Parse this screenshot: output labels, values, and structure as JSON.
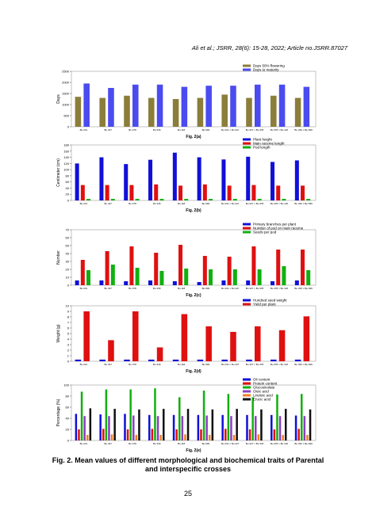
{
  "header": "Ali et al.; JSRR, 28(6): 15-28, 2022; Article no.JSRR.87027",
  "chart_data": [
    {
      "type": "bar",
      "title": "Fig. 2(a)",
      "y_label": "Days",
      "legend": "upper right",
      "categories": [
        "Bu 231",
        "Bu 327",
        "Bu 378",
        "Bu 336",
        "Bu 118",
        "Bp 699",
        "Bu 231 × Bu 327",
        "Bu 327 × Bu 378",
        "Bu 378 × Bu 118",
        "Bu 336 × Bp 699"
      ],
      "series": [
        {
          "name": "Days 50% flowering",
          "color": "#8b7d3a",
          "values": [
            1350,
            1300,
            1400,
            1300,
            1250,
            1300,
            1450,
            1300,
            1400,
            1300
          ]
        },
        {
          "name": "Days to maturity",
          "color": "#4b4bf0",
          "values": [
            1950,
            1750,
            1900,
            1900,
            1800,
            1850,
            1850,
            1900,
            1900,
            1800
          ]
        }
      ],
      "ylim": [
        0,
        2500
      ],
      "yticks": [
        0,
        500,
        1000,
        1500,
        2000,
        2500
      ]
    },
    {
      "type": "bar",
      "title": "Fig. 2(b)",
      "y_label": "Centimeter (cm)",
      "legend": "upper right",
      "categories": [
        "Bu 231",
        "Bu 327",
        "Bu 378",
        "Bu 336",
        "Bu 118",
        "Bp 699",
        "Bu 231 × Bu 327",
        "Bu 327 × Bu 378",
        "Bu 378 × Bu 118",
        "Bu 336 × Bp 699"
      ],
      "series": [
        {
          "name": "Plant height",
          "color": "#1010d8",
          "values": [
            120,
            140,
            118,
            132,
            155,
            140,
            133,
            142,
            125,
            130
          ]
        },
        {
          "name": "Main raceme length",
          "color": "#e01010",
          "values": [
            50,
            50,
            50,
            52,
            48,
            52,
            48,
            50,
            48,
            48
          ]
        },
        {
          "name": "Pod length",
          "color": "#10b010",
          "values": [
            5,
            5,
            5,
            5,
            5,
            5,
            5,
            5,
            5,
            5
          ]
        }
      ],
      "ylim": [
        0,
        180
      ],
      "yticks": [
        0,
        20,
        40,
        60,
        80,
        100,
        120,
        140,
        160,
        180
      ]
    },
    {
      "type": "bar",
      "title": "Fig. 2(c)",
      "y_label": "Number",
      "legend": "upper right",
      "categories": [
        "Bu 231",
        "Bu 327",
        "Bu 378",
        "Bu 336",
        "Bu 118",
        "Bp 699",
        "Bu 231 × Bu 327",
        "Bu 327 × Bu 378",
        "Bu 378 × Bu 118",
        "Bu 336 × Bp 699"
      ],
      "series": [
        {
          "name": "Primary branches per plant",
          "color": "#1010d8",
          "values": [
            6,
            6,
            5,
            6,
            5,
            4,
            6,
            6,
            5,
            6
          ]
        },
        {
          "name": "Number of pod on main raceme",
          "color": "#e01010",
          "values": [
            32,
            43,
            49,
            41,
            51,
            37,
            36,
            49,
            45,
            45
          ]
        },
        {
          "name": "Seeds per pod",
          "color": "#10b010",
          "values": [
            19,
            26,
            22,
            18,
            21,
            20,
            20,
            20,
            24,
            19
          ]
        }
      ],
      "ylim": [
        0,
        70
      ],
      "yticks": [
        0,
        10,
        20,
        30,
        40,
        50,
        60,
        70
      ]
    },
    {
      "type": "bar",
      "title": "Fig. 2(d)",
      "y_label": "Weight (g)",
      "legend": "upper right",
      "categories": [
        "Bu 231",
        "Bu 327",
        "Bu 378",
        "Bu 336",
        "Bu 118",
        "Bp 699",
        "Bu 231 × Bu 327",
        "Bu 327 × Bu 378",
        "Bu 378 × Bu 118",
        "Bu 336 × Bp 699"
      ],
      "series": [
        {
          "name": "Hundred seed weight",
          "color": "#1010d8",
          "values": [
            0.3,
            0.3,
            0.3,
            0.3,
            0.3,
            0.3,
            0.3,
            0.3,
            0.3,
            0.3
          ]
        },
        {
          "name": "Yield per plant",
          "color": "#e01010",
          "values": [
            9,
            3.8,
            9,
            2.5,
            8.5,
            6.3,
            5.3,
            6.3,
            5.6,
            8.1
          ]
        }
      ],
      "ylim": [
        0,
        10
      ],
      "yticks": [
        0,
        1,
        2,
        3,
        4,
        5,
        6,
        7,
        8,
        9,
        10
      ]
    },
    {
      "type": "bar",
      "title": "Fig. 2(e)",
      "y_label": "Percentage (%)",
      "legend": "upper right",
      "categories": [
        "Bu 231",
        "Bu 327",
        "Bu 378",
        "Bu 336",
        "Bu 118",
        "Bp 699",
        "Bu 231 × Bu 327",
        "Bu 327 × Bu 378",
        "Bu 378 × Bu 118",
        "Bu 336 × Bp 699"
      ],
      "series": [
        {
          "name": "Oil content",
          "color": "#1010d8",
          "values": [
            48,
            47,
            48,
            46,
            46,
            46,
            46,
            46,
            46,
            45
          ]
        },
        {
          "name": "Protein content",
          "color": "#e01010",
          "values": [
            20,
            21,
            20,
            21,
            20,
            20,
            21,
            20,
            20,
            21
          ]
        },
        {
          "name": "Glucosinolate",
          "color": "#10b010",
          "values": [
            88,
            92,
            92,
            94,
            78,
            90,
            84,
            78,
            83,
            84
          ]
        },
        {
          "name": "Oleic acid",
          "color": "#8a40c0",
          "values": [
            44,
            44,
            45,
            44,
            44,
            45,
            44,
            44,
            44,
            44
          ]
        },
        {
          "name": "Linoleic acid",
          "color": "#f08020",
          "values": [
            10,
            11,
            10,
            10,
            11,
            10,
            10,
            11,
            10,
            10
          ]
        },
        {
          "name": "Erucic acid",
          "color": "#101010",
          "values": [
            58,
            57,
            56,
            57,
            57,
            56,
            57,
            56,
            57,
            56
          ]
        }
      ],
      "ylim": [
        0,
        100
      ],
      "yticks": [
        0,
        20,
        40,
        60,
        80,
        100
      ]
    }
  ],
  "caption": "Fig. 2. Mean values of different morphological and biochemical traits of Parental and interspecific crosses",
  "page_number": "25"
}
